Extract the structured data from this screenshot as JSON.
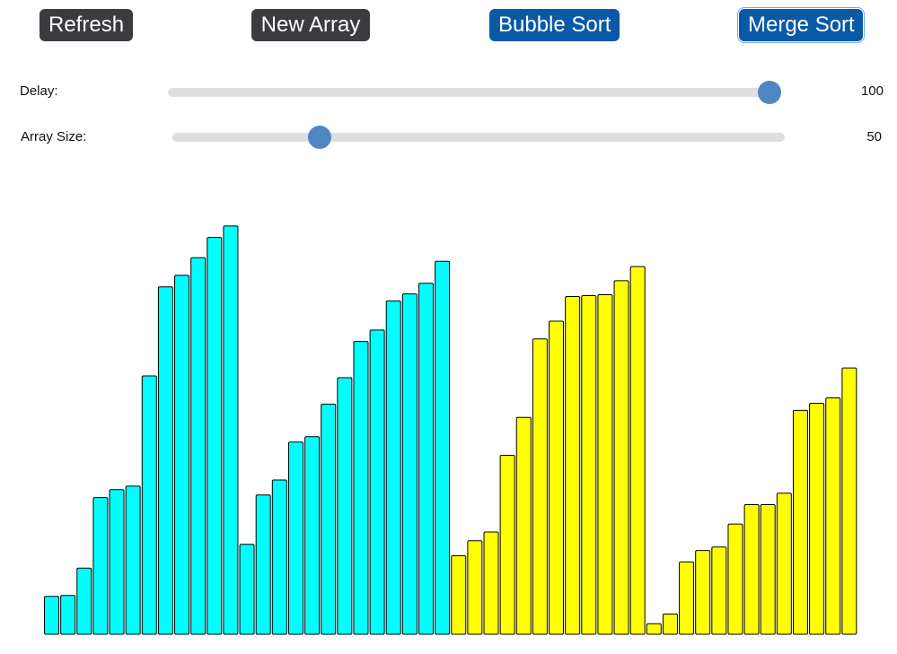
{
  "toolbar": {
    "refresh_label": "Refresh",
    "new_array_label": "New Array",
    "bubble_sort_label": "Bubble Sort",
    "merge_sort_label": "Merge Sort"
  },
  "sliders": {
    "delay": {
      "label": "Delay:",
      "value": "100",
      "fraction": 1.0
    },
    "array_size": {
      "label": "Array Size:",
      "value": "50",
      "fraction": 0.24
    }
  },
  "colors": {
    "button_dark": "#3b3b40",
    "button_blue": "#0a59a8",
    "slider_thumb": "#4f86c4",
    "bar_unsorted": "#00ffff",
    "bar_merging": "#ffff00",
    "bar_outline": "#000000"
  },
  "chart_data": {
    "type": "bar",
    "max_value": 470,
    "values": [
      43,
      44,
      75,
      155,
      164,
      168,
      293,
      394,
      407,
      427,
      450,
      463,
      102,
      158,
      175,
      218,
      224,
      261,
      291,
      332,
      345,
      378,
      386,
      398,
      423,
      89,
      106,
      116,
      203,
      246,
      335,
      355,
      383,
      384,
      385,
      401,
      417,
      12,
      23,
      82,
      95,
      99,
      125,
      147,
      147,
      160,
      254,
      262,
      268,
      302
    ],
    "bar_colors": [
      "cyan",
      "cyan",
      "cyan",
      "cyan",
      "cyan",
      "cyan",
      "cyan",
      "cyan",
      "cyan",
      "cyan",
      "cyan",
      "cyan",
      "cyan",
      "cyan",
      "cyan",
      "cyan",
      "cyan",
      "cyan",
      "cyan",
      "cyan",
      "cyan",
      "cyan",
      "cyan",
      "cyan",
      "cyan",
      "yellow",
      "yellow",
      "yellow",
      "yellow",
      "yellow",
      "yellow",
      "yellow",
      "yellow",
      "yellow",
      "yellow",
      "yellow",
      "yellow",
      "yellow",
      "yellow",
      "yellow",
      "yellow",
      "yellow",
      "yellow",
      "yellow",
      "yellow",
      "yellow",
      "yellow",
      "yellow",
      "yellow",
      "yellow"
    ]
  }
}
